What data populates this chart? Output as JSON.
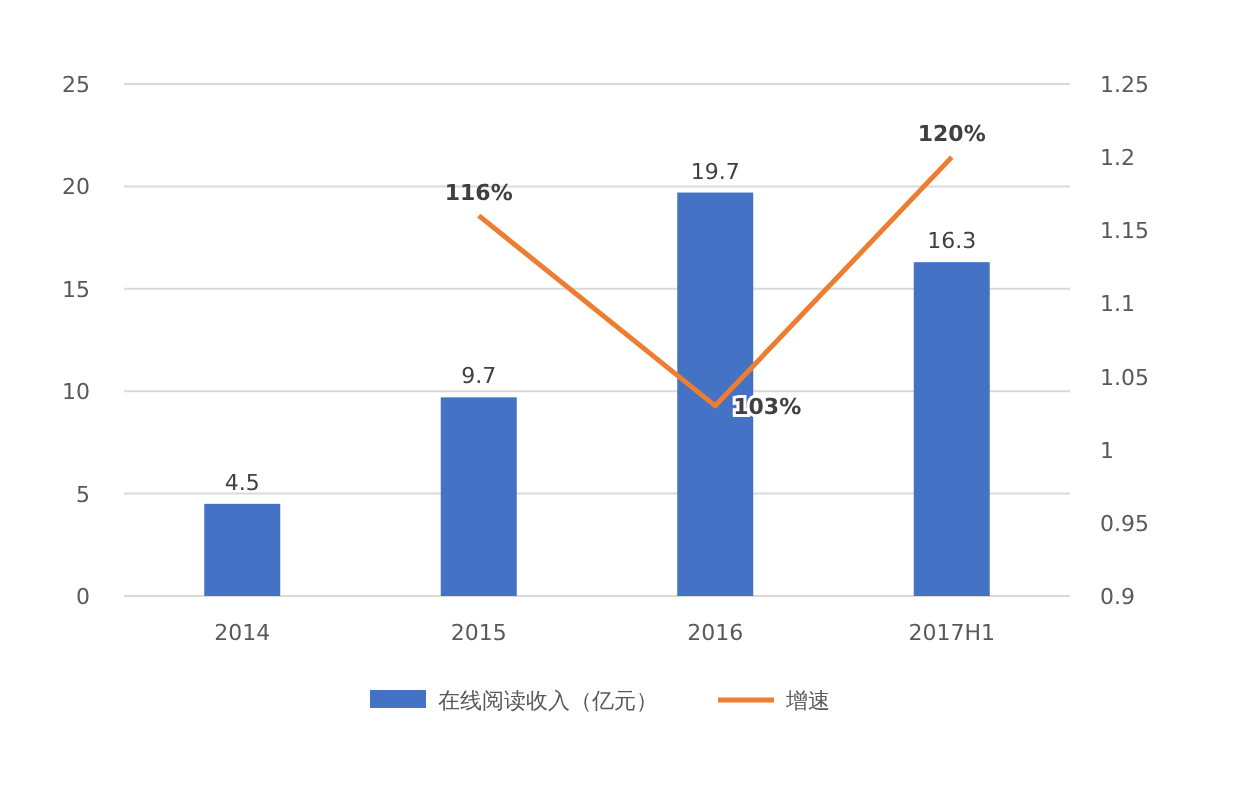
{
  "chart_data": {
    "type": "bar",
    "categories": [
      "2014",
      "2015",
      "2016",
      "2017H1"
    ],
    "series": [
      {
        "name": "在线阅读收入（亿元）",
        "color": "#4472c4",
        "values": [
          4.5,
          9.7,
          19.7,
          16.3
        ],
        "value_labels": [
          "4.5",
          "9.7",
          "19.7",
          "16.3"
        ]
      },
      {
        "name": "增速",
        "type": "line",
        "axis": "y2",
        "color": "#ed7d31",
        "values": [
          null,
          1.16,
          1.03,
          1.2
        ],
        "value_labels": [
          null,
          "116%",
          "103%",
          "120%"
        ]
      }
    ],
    "ylim": [
      0,
      25
    ],
    "yticks": [
      0,
      5,
      10,
      15,
      20,
      25
    ],
    "y2lim": [
      0.9,
      1.25
    ],
    "y2ticks": [
      0.9,
      0.95,
      1,
      1.05,
      1.1,
      1.15,
      1.2,
      1.25
    ],
    "grid": "y",
    "legend": "bottom",
    "marker": "none",
    "line_style": "solid"
  }
}
